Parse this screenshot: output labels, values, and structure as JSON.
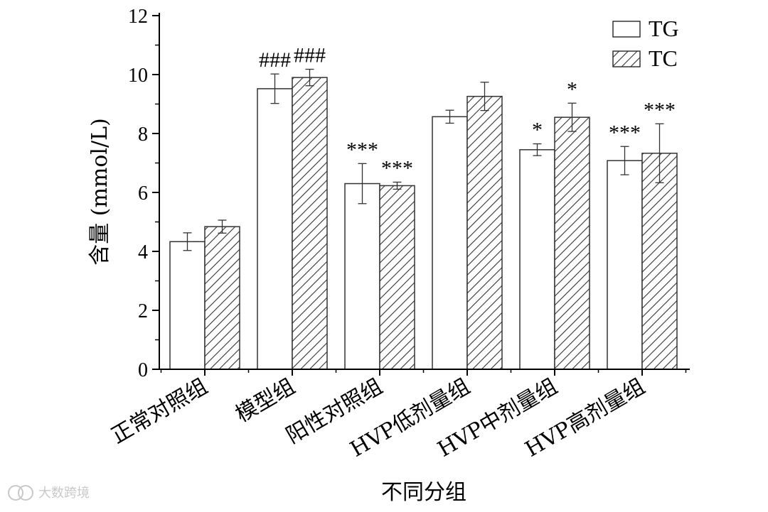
{
  "chart_data": {
    "type": "bar",
    "categories": [
      "正常对照组",
      "模型组",
      "阳性对照组",
      "HVP低剂量组",
      "HVP中剂量组",
      "HVP高剂量组"
    ],
    "series": [
      {
        "name": "TG",
        "values": [
          4.33,
          9.52,
          6.3,
          8.57,
          7.45,
          7.08
        ],
        "errors": [
          0.3,
          0.5,
          0.68,
          0.22,
          0.2,
          0.48
        ],
        "annotations": [
          "",
          "###",
          "***",
          "",
          "*",
          "***"
        ],
        "pattern": "open"
      },
      {
        "name": "TC",
        "values": [
          4.84,
          9.9,
          6.23,
          9.26,
          8.55,
          7.33
        ],
        "errors": [
          0.22,
          0.28,
          0.12,
          0.48,
          0.48,
          1.0
        ],
        "annotations": [
          "",
          "###",
          "***",
          "",
          "*",
          "***"
        ],
        "pattern": "hatched"
      }
    ],
    "xlabel": "不同分组",
    "ylabel": "含量 (mmol/L)",
    "ylim": [
      0,
      12
    ],
    "yticks": [
      "0",
      "2",
      "4",
      "6",
      "8",
      "10",
      "12"
    ],
    "grid": false,
    "legend": "top-right"
  },
  "watermark": {
    "text": "大数跨境"
  }
}
